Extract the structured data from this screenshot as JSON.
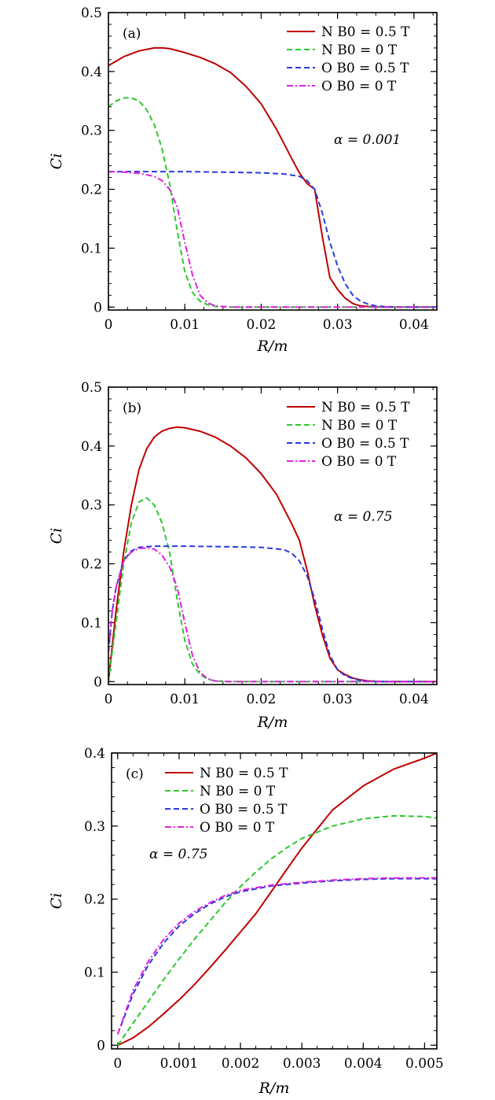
{
  "chart_data": [
    {
      "type": "line",
      "panel_label": "(a)",
      "annotation": "α = 0.001",
      "xlabel": "R/m",
      "ylabel": "Ci",
      "xlim": [
        0,
        0.043
      ],
      "ylim": [
        -0.005,
        0.5
      ],
      "xticks": [
        0,
        0.01,
        0.02,
        0.03,
        0.04
      ],
      "xtick_labels": [
        "0",
        "0.01",
        "0.02",
        "0.03",
        "0.04"
      ],
      "yticks": [
        0,
        0.1,
        0.2,
        0.3,
        0.4,
        0.5
      ],
      "ytick_labels": [
        "0",
        "0.1",
        "0.2",
        "0.3",
        "0.4",
        "0.5"
      ],
      "legend_position": "top-right",
      "series": [
        {
          "name": "N B0 = 0.5 T",
          "color": "#c00000",
          "dash": "solid",
          "x": [
            0,
            0.002,
            0.004,
            0.006,
            0.007,
            0.008,
            0.01,
            0.012,
            0.014,
            0.016,
            0.018,
            0.02,
            0.022,
            0.024,
            0.025,
            0.026,
            0.027,
            0.028,
            0.029,
            0.03,
            0.031,
            0.032,
            0.033,
            0.034,
            0.036,
            0.038,
            0.043
          ],
          "y": [
            0.41,
            0.425,
            0.435,
            0.44,
            0.44,
            0.439,
            0.432,
            0.424,
            0.413,
            0.398,
            0.375,
            0.345,
            0.302,
            0.252,
            0.228,
            0.21,
            0.2,
            0.12,
            0.05,
            0.03,
            0.015,
            0.006,
            0.002,
            0.001,
            0,
            0,
            0
          ]
        },
        {
          "name": "N B0 = 0 T",
          "color": "#2ec82e",
          "dash": "dashed",
          "x": [
            0,
            0.001,
            0.002,
            0.003,
            0.004,
            0.005,
            0.006,
            0.007,
            0.008,
            0.009,
            0.01,
            0.011,
            0.012,
            0.013,
            0.014,
            0.016,
            0.02,
            0.03,
            0.043
          ],
          "y": [
            0.34,
            0.35,
            0.355,
            0.355,
            0.35,
            0.335,
            0.31,
            0.27,
            0.21,
            0.13,
            0.06,
            0.025,
            0.01,
            0.004,
            0.001,
            0,
            0,
            0,
            0
          ]
        },
        {
          "name": "O B0 = 0.5 T",
          "color": "#2b3ae0",
          "dash": "dashed",
          "x": [
            0,
            0.005,
            0.01,
            0.015,
            0.02,
            0.023,
            0.025,
            0.026,
            0.027,
            0.028,
            0.029,
            0.03,
            0.031,
            0.032,
            0.033,
            0.034,
            0.035,
            0.036,
            0.038,
            0.043
          ],
          "y": [
            0.23,
            0.23,
            0.23,
            0.229,
            0.228,
            0.226,
            0.222,
            0.215,
            0.2,
            0.16,
            0.11,
            0.07,
            0.04,
            0.02,
            0.01,
            0.005,
            0.002,
            0.001,
            0,
            0
          ]
        },
        {
          "name": "O B0 = 0 T",
          "color": "#e020e0",
          "dash": "dashdot",
          "x": [
            0,
            0.002,
            0.004,
            0.006,
            0.007,
            0.008,
            0.009,
            0.01,
            0.011,
            0.012,
            0.013,
            0.014,
            0.016,
            0.02,
            0.03,
            0.043
          ],
          "y": [
            0.23,
            0.229,
            0.227,
            0.222,
            0.215,
            0.2,
            0.17,
            0.11,
            0.055,
            0.02,
            0.007,
            0.002,
            0,
            0,
            0,
            0
          ]
        }
      ]
    },
    {
      "type": "line",
      "panel_label": "(b)",
      "annotation": "α = 0.75",
      "xlabel": "R/m",
      "ylabel": "Ci",
      "xlim": [
        0,
        0.043
      ],
      "ylim": [
        -0.005,
        0.5
      ],
      "xticks": [
        0,
        0.01,
        0.02,
        0.03,
        0.04
      ],
      "xtick_labels": [
        "0",
        "0.01",
        "0.02",
        "0.03",
        "0.04"
      ],
      "yticks": [
        0,
        0.1,
        0.2,
        0.3,
        0.4,
        0.5
      ],
      "ytick_labels": [
        "0",
        "0.1",
        "0.2",
        "0.3",
        "0.4",
        "0.5"
      ],
      "legend_position": "top-right",
      "series": [
        {
          "name": "N B0 = 0.5 T",
          "color": "#c00000",
          "dash": "solid",
          "x": [
            0,
            0.001,
            0.002,
            0.003,
            0.004,
            0.005,
            0.006,
            0.007,
            0.008,
            0.009,
            0.01,
            0.012,
            0.014,
            0.016,
            0.018,
            0.02,
            0.022,
            0.024,
            0.025,
            0.026,
            0.027,
            0.028,
            0.029,
            0.03,
            0.031,
            0.032,
            0.033,
            0.034,
            0.036,
            0.043
          ],
          "y": [
            0.0,
            0.12,
            0.22,
            0.3,
            0.36,
            0.395,
            0.415,
            0.425,
            0.43,
            0.432,
            0.431,
            0.425,
            0.415,
            0.4,
            0.38,
            0.353,
            0.318,
            0.268,
            0.24,
            0.19,
            0.13,
            0.08,
            0.04,
            0.02,
            0.012,
            0.006,
            0.003,
            0.001,
            0,
            0
          ]
        },
        {
          "name": "N B0 = 0 T",
          "color": "#2ec82e",
          "dash": "dashed",
          "x": [
            0,
            0.001,
            0.002,
            0.003,
            0.004,
            0.005,
            0.006,
            0.007,
            0.008,
            0.009,
            0.01,
            0.011,
            0.012,
            0.013,
            0.014,
            0.016,
            0.02,
            0.043
          ],
          "y": [
            0,
            0.1,
            0.2,
            0.27,
            0.305,
            0.312,
            0.3,
            0.27,
            0.22,
            0.14,
            0.07,
            0.03,
            0.012,
            0.004,
            0.001,
            0,
            0,
            0
          ]
        },
        {
          "name": "O B0 = 0.5 T",
          "color": "#2b3ae0",
          "dash": "dashed",
          "x": [
            0,
            0.0005,
            0.001,
            0.002,
            0.003,
            0.004,
            0.006,
            0.01,
            0.015,
            0.02,
            0.023,
            0.024,
            0.025,
            0.026,
            0.027,
            0.028,
            0.029,
            0.03,
            0.031,
            0.032,
            0.033,
            0.034,
            0.036,
            0.043
          ],
          "y": [
            0.05,
            0.12,
            0.16,
            0.205,
            0.222,
            0.228,
            0.23,
            0.23,
            0.229,
            0.228,
            0.224,
            0.218,
            0.205,
            0.18,
            0.14,
            0.09,
            0.045,
            0.02,
            0.01,
            0.005,
            0.002,
            0.001,
            0,
            0
          ]
        },
        {
          "name": "O B0 = 0 T",
          "color": "#e020e0",
          "dash": "dashdot",
          "x": [
            0,
            0.0005,
            0.001,
            0.002,
            0.003,
            0.004,
            0.005,
            0.006,
            0.007,
            0.008,
            0.009,
            0.01,
            0.011,
            0.012,
            0.013,
            0.014,
            0.016,
            0.02,
            0.043
          ],
          "y": [
            0.05,
            0.12,
            0.16,
            0.205,
            0.22,
            0.226,
            0.227,
            0.225,
            0.215,
            0.195,
            0.16,
            0.1,
            0.045,
            0.015,
            0.005,
            0.001,
            0,
            0,
            0
          ]
        }
      ]
    },
    {
      "type": "line",
      "panel_label": "(c)",
      "annotation": "α = 0.75",
      "xlabel": "R/m",
      "ylabel": "Ci",
      "xlim": [
        -0.0001,
        0.0052
      ],
      "ylim": [
        -0.005,
        0.4
      ],
      "xticks": [
        0,
        0.001,
        0.002,
        0.003,
        0.004,
        0.005
      ],
      "xtick_labels": [
        "0",
        "0.001",
        "0.002",
        "0.003",
        "0.004",
        "0.005"
      ],
      "yticks": [
        0,
        0.1,
        0.2,
        0.3,
        0.4
      ],
      "ytick_labels": [
        "0",
        "0.1",
        "0.2",
        "0.3",
        "0.4"
      ],
      "legend_position": "top-left",
      "series": [
        {
          "name": "N B0 = 0.5 T",
          "color": "#c00000",
          "dash": "solid",
          "x": [
            0,
            0.00025,
            0.0005,
            0.00075,
            0.001,
            0.00125,
            0.0015,
            0.00175,
            0.002,
            0.00225,
            0.0025,
            0.00275,
            0.003,
            0.0035,
            0.004,
            0.0045,
            0.005,
            0.0052
          ],
          "y": [
            0.0,
            0.01,
            0.025,
            0.043,
            0.062,
            0.083,
            0.106,
            0.13,
            0.155,
            0.18,
            0.21,
            0.24,
            0.27,
            0.322,
            0.355,
            0.378,
            0.393,
            0.4
          ]
        },
        {
          "name": "N B0 = 0 T",
          "color": "#2ec82e",
          "dash": "dashed",
          "x": [
            0,
            0.00025,
            0.0005,
            0.00075,
            0.001,
            0.00125,
            0.0015,
            0.00175,
            0.002,
            0.00225,
            0.0025,
            0.00275,
            0.003,
            0.0035,
            0.004,
            0.0045,
            0.005,
            0.0052
          ],
          "y": [
            0.0,
            0.03,
            0.06,
            0.09,
            0.118,
            0.145,
            0.17,
            0.195,
            0.217,
            0.237,
            0.255,
            0.27,
            0.283,
            0.3,
            0.31,
            0.314,
            0.313,
            0.311
          ]
        },
        {
          "name": "O B0 = 0.5 T",
          "color": "#2b3ae0",
          "dash": "dashed",
          "x": [
            0,
            0.00025,
            0.0005,
            0.00075,
            0.001,
            0.00125,
            0.0015,
            0.00175,
            0.002,
            0.0025,
            0.003,
            0.0035,
            0.004,
            0.0045,
            0.005,
            0.0052
          ],
          "y": [
            0.015,
            0.07,
            0.11,
            0.14,
            0.163,
            0.18,
            0.193,
            0.203,
            0.21,
            0.218,
            0.222,
            0.225,
            0.227,
            0.228,
            0.228,
            0.228
          ]
        },
        {
          "name": "O B0 = 0 T",
          "color": "#e020e0",
          "dash": "dashdot",
          "x": [
            0,
            0.00025,
            0.0005,
            0.00075,
            0.001,
            0.00125,
            0.0015,
            0.00175,
            0.002,
            0.0025,
            0.003,
            0.0035,
            0.004,
            0.0045,
            0.005,
            0.0052
          ],
          "y": [
            0.015,
            0.075,
            0.115,
            0.145,
            0.167,
            0.183,
            0.195,
            0.205,
            0.212,
            0.219,
            0.223,
            0.226,
            0.228,
            0.229,
            0.229,
            0.229
          ]
        }
      ]
    }
  ]
}
